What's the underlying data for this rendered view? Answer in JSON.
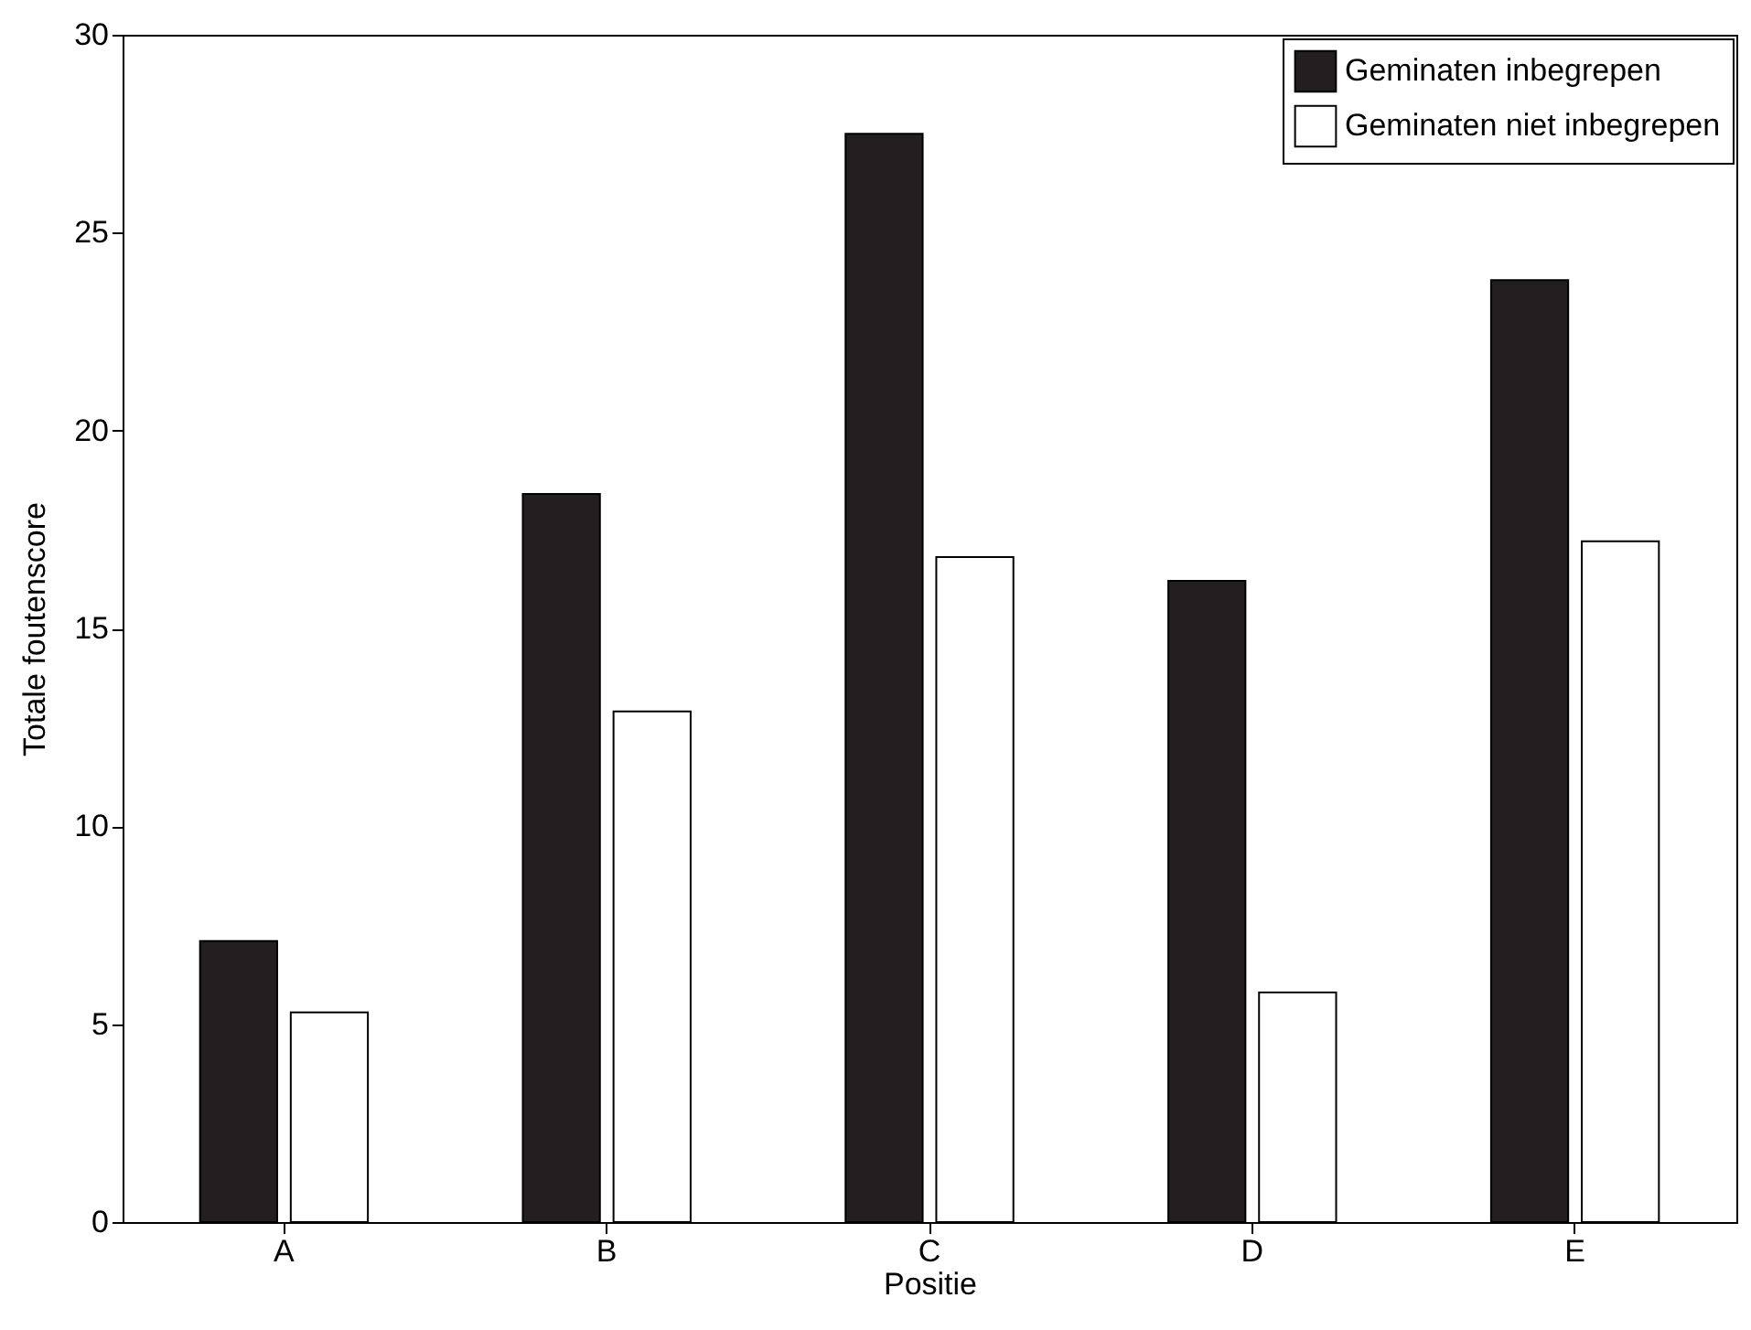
{
  "chart_data": {
    "type": "bar",
    "xlabel": "Positie",
    "ylabel": "Totale foutenscore",
    "categories": [
      "A",
      "B",
      "C",
      "D",
      "E"
    ],
    "series": [
      {
        "name": "Geminaten inbegrepen",
        "color": "#231f20",
        "values": [
          7.1,
          18.4,
          27.5,
          16.2,
          23.8
        ]
      },
      {
        "name": "Geminaten niet inbegrepen",
        "color": "#ffffff",
        "values": [
          5.3,
          12.9,
          16.8,
          5.8,
          17.2
        ]
      }
    ],
    "ylim": [
      0,
      30
    ],
    "yticks": [
      0,
      5,
      10,
      15,
      20,
      25,
      30
    ],
    "legend": "top right",
    "grid": false
  }
}
